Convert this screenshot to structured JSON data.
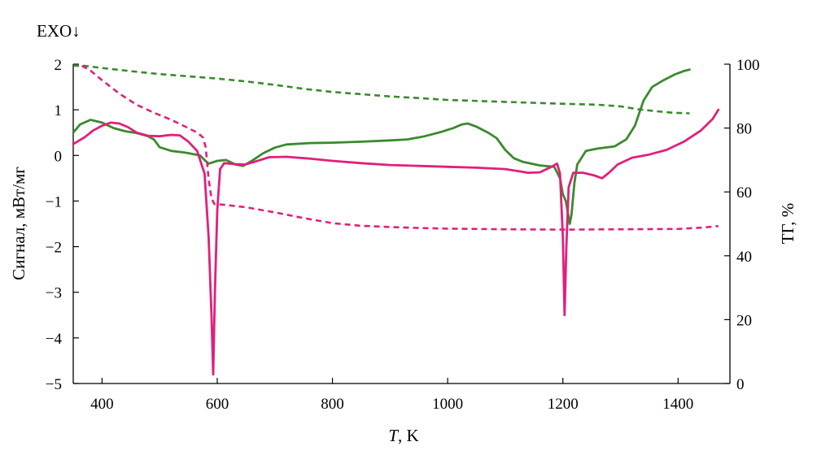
{
  "chart_data": {
    "type": "line",
    "annotation": "EXO↓",
    "xlabel_italic": "T",
    "xlabel_rest": ", K",
    "ylabel": "Сигнал, мВт/мг",
    "y2label": "ТГ, %",
    "xlim": [
      350,
      1490
    ],
    "ylim": [
      -5,
      2
    ],
    "y2lim": [
      0,
      100
    ],
    "x_ticks": [
      400,
      600,
      800,
      1000,
      1200,
      1400
    ],
    "y_ticks": [
      2,
      1,
      0,
      -1,
      -2,
      -3,
      -4,
      -5
    ],
    "y_tick_labels": [
      "2",
      "1",
      "0",
      "−1",
      "−2",
      "−3",
      "−4",
      "−5"
    ],
    "y2_ticks": [
      100,
      80,
      60,
      40,
      20,
      0
    ],
    "grid": false,
    "colors": {
      "green": "#3a8a2e",
      "magenta": "#e0207a"
    },
    "series": [
      {
        "axis": "left",
        "style": "solid",
        "color": "#3a8a2e",
        "points": [
          [
            350,
            0.5
          ],
          [
            362,
            0.68
          ],
          [
            380,
            0.78
          ],
          [
            400,
            0.72
          ],
          [
            420,
            0.6
          ],
          [
            440,
            0.53
          ],
          [
            460,
            0.49
          ],
          [
            480,
            0.42
          ],
          [
            490,
            0.35
          ],
          [
            500,
            0.18
          ],
          [
            520,
            0.1
          ],
          [
            545,
            0.06
          ],
          [
            570,
            0.0
          ],
          [
            578,
            -0.1
          ],
          [
            585,
            -0.18
          ],
          [
            600,
            -0.12
          ],
          [
            615,
            -0.1
          ],
          [
            632,
            -0.2
          ],
          [
            645,
            -0.23
          ],
          [
            660,
            -0.12
          ],
          [
            680,
            0.05
          ],
          [
            700,
            0.17
          ],
          [
            720,
            0.24
          ],
          [
            760,
            0.27
          ],
          [
            800,
            0.28
          ],
          [
            850,
            0.3
          ],
          [
            900,
            0.33
          ],
          [
            930,
            0.35
          ],
          [
            960,
            0.42
          ],
          [
            990,
            0.52
          ],
          [
            1010,
            0.6
          ],
          [
            1025,
            0.68
          ],
          [
            1035,
            0.7
          ],
          [
            1050,
            0.63
          ],
          [
            1070,
            0.5
          ],
          [
            1085,
            0.38
          ],
          [
            1100,
            0.12
          ],
          [
            1115,
            -0.06
          ],
          [
            1130,
            -0.14
          ],
          [
            1160,
            -0.22
          ],
          [
            1185,
            -0.25
          ],
          [
            1195,
            -0.5
          ],
          [
            1200,
            -0.85
          ],
          [
            1205,
            -1.0
          ],
          [
            1212,
            -1.5
          ],
          [
            1215,
            -1.3
          ],
          [
            1220,
            -0.6
          ],
          [
            1225,
            -0.2
          ],
          [
            1240,
            0.1
          ],
          [
            1260,
            0.15
          ],
          [
            1290,
            0.2
          ],
          [
            1310,
            0.35
          ],
          [
            1325,
            0.65
          ],
          [
            1340,
            1.2
          ],
          [
            1355,
            1.5
          ],
          [
            1375,
            1.65
          ],
          [
            1395,
            1.78
          ],
          [
            1410,
            1.85
          ],
          [
            1420,
            1.88
          ]
        ]
      },
      {
        "axis": "left",
        "style": "solid",
        "color": "#e0207a",
        "points": [
          [
            350,
            0.25
          ],
          [
            370,
            0.4
          ],
          [
            385,
            0.55
          ],
          [
            400,
            0.65
          ],
          [
            415,
            0.72
          ],
          [
            430,
            0.7
          ],
          [
            445,
            0.62
          ],
          [
            460,
            0.5
          ],
          [
            480,
            0.43
          ],
          [
            500,
            0.42
          ],
          [
            520,
            0.45
          ],
          [
            535,
            0.44
          ],
          [
            550,
            0.3
          ],
          [
            565,
            0.1
          ],
          [
            578,
            -0.4
          ],
          [
            585,
            -1.8
          ],
          [
            590,
            -3.5
          ],
          [
            593,
            -4.8
          ],
          [
            596,
            -3.0
          ],
          [
            600,
            -1.2
          ],
          [
            605,
            -0.3
          ],
          [
            612,
            -0.17
          ],
          [
            630,
            -0.19
          ],
          [
            648,
            -0.2
          ],
          [
            665,
            -0.14
          ],
          [
            690,
            -0.04
          ],
          [
            720,
            -0.03
          ],
          [
            760,
            -0.07
          ],
          [
            800,
            -0.12
          ],
          [
            850,
            -0.17
          ],
          [
            900,
            -0.21
          ],
          [
            950,
            -0.23
          ],
          [
            1000,
            -0.25
          ],
          [
            1050,
            -0.27
          ],
          [
            1100,
            -0.3
          ],
          [
            1140,
            -0.38
          ],
          [
            1160,
            -0.37
          ],
          [
            1180,
            -0.25
          ],
          [
            1190,
            -0.18
          ],
          [
            1195,
            -0.4
          ],
          [
            1200,
            -1.8
          ],
          [
            1203,
            -3.5
          ],
          [
            1206,
            -2.0
          ],
          [
            1210,
            -0.7
          ],
          [
            1218,
            -0.38
          ],
          [
            1235,
            -0.38
          ],
          [
            1255,
            -0.44
          ],
          [
            1268,
            -0.5
          ],
          [
            1280,
            -0.38
          ],
          [
            1295,
            -0.2
          ],
          [
            1320,
            -0.05
          ],
          [
            1350,
            0.02
          ],
          [
            1380,
            0.12
          ],
          [
            1410,
            0.3
          ],
          [
            1440,
            0.55
          ],
          [
            1460,
            0.8
          ],
          [
            1470,
            1.0
          ]
        ]
      },
      {
        "axis": "right",
        "style": "dashed",
        "color": "#3a8a2e",
        "points": [
          [
            350,
            99.5
          ],
          [
            370,
            99.5
          ],
          [
            400,
            98.8
          ],
          [
            450,
            97.8
          ],
          [
            500,
            96.9
          ],
          [
            550,
            96.2
          ],
          [
            600,
            95.5
          ],
          [
            650,
            94.6
          ],
          [
            700,
            93.5
          ],
          [
            750,
            92.3
          ],
          [
            800,
            91.3
          ],
          [
            850,
            90.6
          ],
          [
            900,
            89.9
          ],
          [
            950,
            89.4
          ],
          [
            1000,
            88.8
          ],
          [
            1100,
            88.2
          ],
          [
            1200,
            87.6
          ],
          [
            1260,
            87.3
          ],
          [
            1300,
            86.8
          ],
          [
            1330,
            85.9
          ],
          [
            1360,
            85.3
          ],
          [
            1390,
            84.8
          ],
          [
            1420,
            84.6
          ]
        ]
      },
      {
        "axis": "right",
        "style": "dashed",
        "color": "#e0207a",
        "points": [
          [
            365,
            99.5
          ],
          [
            380,
            98
          ],
          [
            400,
            95
          ],
          [
            430,
            90.8
          ],
          [
            460,
            87.3
          ],
          [
            490,
            84.8
          ],
          [
            520,
            82.6
          ],
          [
            545,
            80.4
          ],
          [
            565,
            78.6
          ],
          [
            575,
            77.1
          ],
          [
            580,
            74
          ],
          [
            585,
            64
          ],
          [
            590,
            58
          ],
          [
            595,
            56.2
          ],
          [
            610,
            56
          ],
          [
            650,
            55.2
          ],
          [
            700,
            53.6
          ],
          [
            750,
            51.8
          ],
          [
            800,
            50.2
          ],
          [
            850,
            49.4
          ],
          [
            900,
            49
          ],
          [
            950,
            48.7
          ],
          [
            1000,
            48.5
          ],
          [
            1100,
            48.3
          ],
          [
            1200,
            48.2
          ],
          [
            1300,
            48.3
          ],
          [
            1400,
            48.4
          ],
          [
            1440,
            48.8
          ],
          [
            1470,
            49.3
          ]
        ]
      }
    ]
  }
}
